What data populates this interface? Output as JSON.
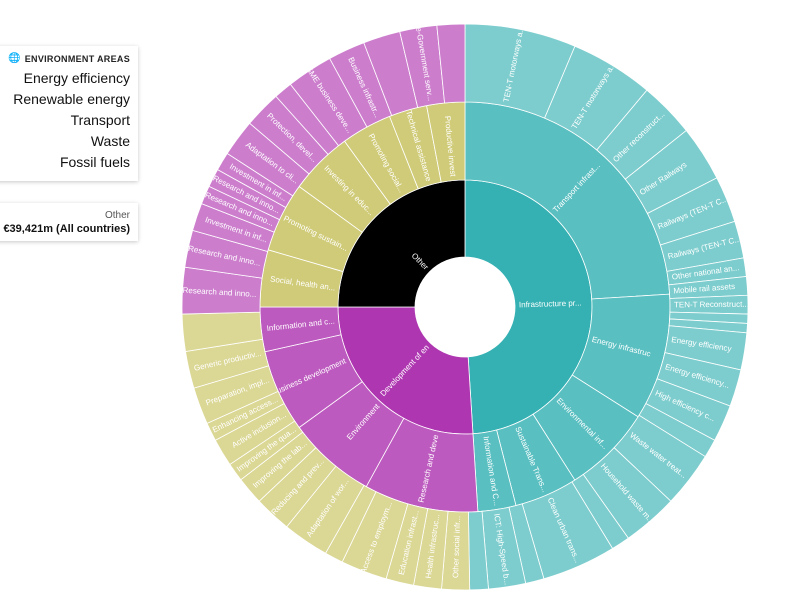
{
  "legend": {
    "title": "ENVIRONMENT AREAS",
    "title_icon": "globe-icon",
    "items": [
      "Energy efficiency",
      "Renewable energy",
      "Transport",
      "Waste",
      "Fossil fuels"
    ]
  },
  "total": {
    "category": "Other",
    "amount": "€39,421m (All countries)"
  },
  "chart_data": {
    "type": "sunburst",
    "title": "",
    "center_label": "",
    "unit": "€m",
    "colors": {
      "teal": "#35b1b3",
      "magenta": "#af36b1",
      "black": "#000000",
      "olive": "#c6c05a"
    },
    "rings": [
      {
        "level": 1,
        "segments": [
          {
            "label": "Infrastructure pr...",
            "value": 49,
            "color": "teal"
          },
          {
            "label": "Development of en",
            "value": 26,
            "color": "magenta"
          },
          {
            "label": "Other",
            "value": 25,
            "color": "black"
          }
        ]
      },
      {
        "level": 2,
        "segments": [
          {
            "label": "Transport infrast...",
            "value": 24,
            "color": "teal"
          },
          {
            "label": "Energy infrastruc",
            "value": 10,
            "color": "teal"
          },
          {
            "label": "Environmental inf...",
            "value": 7,
            "color": "teal"
          },
          {
            "label": "Sustainable Trans...",
            "value": 5,
            "color": "teal"
          },
          {
            "label": "Information and C...",
            "value": 3,
            "color": "teal"
          },
          {
            "label": "Research and deve",
            "value": 9,
            "color": "magenta"
          },
          {
            "label": "Environment",
            "value": 7,
            "color": "magenta"
          },
          {
            "label": "Business development",
            "value": 6.5,
            "color": "magenta"
          },
          {
            "label": "Information and c...",
            "value": 3.5,
            "color": "magenta"
          },
          {
            "label": "Social, health an...",
            "value": 4.5,
            "color": "olive"
          },
          {
            "label": "Promoting sustain...",
            "value": 5.5,
            "color": "olive"
          },
          {
            "label": "Investing in educ...",
            "value": 5,
            "color": "olive"
          },
          {
            "label": "Promoting social...",
            "value": 4,
            "color": "olive"
          },
          {
            "label": "Technical assistance",
            "value": 3,
            "color": "olive"
          },
          {
            "label": "Productive invest",
            "value": 3,
            "color": "olive"
          }
        ]
      },
      {
        "level": 3,
        "segments": [
          {
            "label": "TEN-T motorways a...",
            "value": 6,
            "color": "teal"
          },
          {
            "label": "TEN-T motorways a...",
            "value": 4.5,
            "color": "teal"
          },
          {
            "label": "Other reconstruct...",
            "value": 3,
            "color": "teal"
          },
          {
            "label": "Other Railways",
            "value": 3,
            "color": "teal"
          },
          {
            "label": "Railways (TEN-T C...",
            "value": 2.5,
            "color": "teal"
          },
          {
            "label": "Railways (TEN-T C...",
            "value": 2,
            "color": "teal"
          },
          {
            "label": "Other national an...",
            "value": 1,
            "color": "teal"
          },
          {
            "label": "Mobile rail assets",
            "value": 1,
            "color": "teal"
          },
          {
            "label": "TEN-T Reconstruct...",
            "value": 1,
            "color": "teal"
          },
          {
            "label": "",
            "value": 0.5,
            "color": "teal"
          },
          {
            "label": "",
            "value": 0.5,
            "color": "teal"
          },
          {
            "label": "Energy efficiency",
            "value": 2,
            "color": "teal"
          },
          {
            "label": "Energy efficiency...",
            "value": 2,
            "color": "teal"
          },
          {
            "label": "High efficiency c...",
            "value": 2,
            "color": "teal"
          },
          {
            "label": "",
            "value": 1,
            "color": "teal"
          },
          {
            "label": "Waste water treat...",
            "value": 3,
            "color": "teal"
          },
          {
            "label": "Household waste m...",
            "value": 3,
            "color": "teal"
          },
          {
            "label": "",
            "value": 1,
            "color": "teal"
          },
          {
            "label": "Clean urban trans...",
            "value": 4,
            "color": "teal"
          },
          {
            "label": "",
            "value": 1,
            "color": "teal"
          },
          {
            "label": "ICT: High-Speed b...",
            "value": 2,
            "color": "teal"
          },
          {
            "label": "",
            "value": 1,
            "color": "teal"
          },
          {
            "label": "Other social infr...",
            "value": 1.5,
            "color": "olive"
          },
          {
            "label": "Health infrastruc...",
            "value": 1.5,
            "color": "olive"
          },
          {
            "label": "Education infrast...",
            "value": 1.5,
            "color": "olive"
          },
          {
            "label": "Access to employm...",
            "value": 2.5,
            "color": "olive"
          },
          {
            "label": "",
            "value": 1,
            "color": "olive"
          },
          {
            "label": "Adaptation of wor...",
            "value": 2.5,
            "color": "olive"
          },
          {
            "label": "Reducing and prev...",
            "value": 2,
            "color": "olive"
          },
          {
            "label": "Improving the lab...",
            "value": 1.5,
            "color": "olive"
          },
          {
            "label": "Improving the qua...",
            "value": 1,
            "color": "olive"
          },
          {
            "label": "Active inclusion...",
            "value": 1.5,
            "color": "olive"
          },
          {
            "label": "Enhancing access...",
            "value": 1,
            "color": "olive"
          },
          {
            "label": "Preparation, impl...",
            "value": 2,
            "color": "olive"
          },
          {
            "label": "Generic productiv...",
            "value": 2,
            "color": "olive"
          },
          {
            "label": "",
            "value": 2,
            "color": "olive"
          },
          {
            "label": "Research and inno...",
            "value": 2.5,
            "color": "magenta"
          },
          {
            "label": "Research and inno...",
            "value": 2,
            "color": "magenta"
          },
          {
            "label": "Investment in inf...",
            "value": 1.5,
            "color": "magenta"
          },
          {
            "label": "Research and inno...",
            "value": 1,
            "color": "magenta"
          },
          {
            "label": "Research and inno...",
            "value": 1,
            "color": "magenta"
          },
          {
            "label": "Investment in inf...",
            "value": 1,
            "color": "magenta"
          },
          {
            "label": "Adaptation to cli...",
            "value": 2,
            "color": "magenta"
          },
          {
            "label": "Protection, devel...",
            "value": 2,
            "color": "magenta"
          },
          {
            "label": "",
            "value": 1,
            "color": "magenta"
          },
          {
            "label": "SME business deve...",
            "value": 2.5,
            "color": "magenta"
          },
          {
            "label": "Business infrastr...",
            "value": 2,
            "color": "magenta"
          },
          {
            "label": "",
            "value": 2,
            "color": "magenta"
          },
          {
            "label": "e-Government serv...",
            "value": 2,
            "color": "magenta"
          },
          {
            "label": "",
            "value": 1.5,
            "color": "magenta"
          }
        ]
      }
    ]
  }
}
